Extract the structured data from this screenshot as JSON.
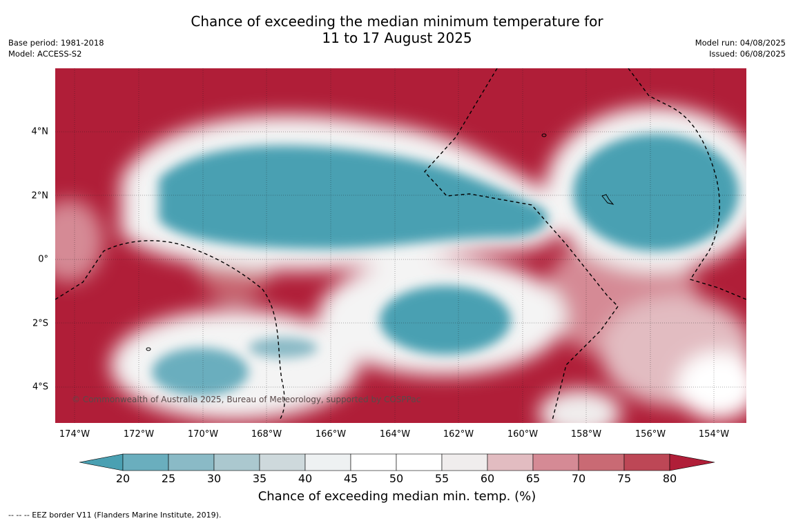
{
  "title_line1": "Chance of exceeding the median minimum temperature for",
  "title_line2": "11 to 17 August 2025",
  "meta_left": [
    "Base period: 1981-2018",
    "Model: ACCESS-S2"
  ],
  "meta_right": [
    "Model run: 04/08/2025",
    "Issued: 06/08/2025"
  ],
  "map": {
    "lon_range": [
      -174.6,
      -153.0
    ],
    "lat_range": [
      -5.15,
      5.95
    ],
    "x_ticks": [
      "174°W",
      "172°W",
      "170°W",
      "168°W",
      "166°W",
      "164°W",
      "162°W",
      "160°W",
      "158°W",
      "156°W",
      "154°W"
    ],
    "x_tick_values": [
      -174,
      -172,
      -170,
      -168,
      -166,
      -164,
      -162,
      -160,
      -158,
      -156,
      -154
    ],
    "y_ticks": [
      "4°N",
      "2°N",
      "0°",
      "2°S",
      "4°S"
    ],
    "y_tick_values": [
      4,
      2,
      0,
      -2,
      -4
    ],
    "copyright": "© Commonwealth of Australia 2025, Bureau of Meteorology, supported by COSPPac"
  },
  "colorbar": {
    "ticks": [
      "20",
      "25",
      "30",
      "35",
      "40",
      "45",
      "50",
      "55",
      "60",
      "65",
      "70",
      "75",
      "80"
    ],
    "colors": [
      "#4aa0b2",
      "#6aaebe",
      "#8abac6",
      "#abc8cf",
      "#ced9dc",
      "#eef1f2",
      "#ffffff",
      "#ffffff",
      "#f0eded",
      "#e2bcc1",
      "#d58a95",
      "#c96a74",
      "#bd4756",
      "#b01e38"
    ],
    "label": "Chance of exceeding median min. temp. (%)"
  },
  "footer": "--  --  -- EEZ border V11 (Flanders Marine Institute, 2019)."
}
